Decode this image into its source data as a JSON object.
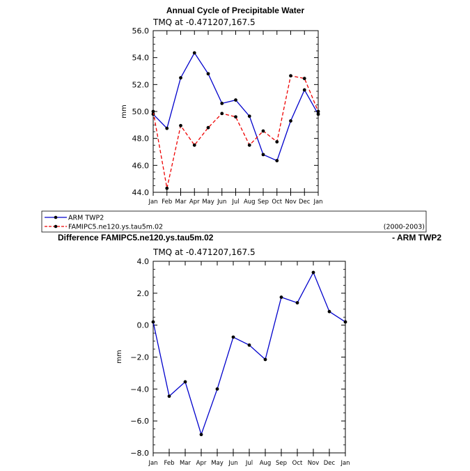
{
  "chart_data": [
    {
      "type": "line",
      "title": "Annual Cycle of Precipitable Water",
      "subtitle": "TMQ at -0.471207,167.5",
      "xlabel": "",
      "ylabel": "mm",
      "categories": [
        "Jan",
        "Feb",
        "Mar",
        "Apr",
        "May",
        "Jun",
        "Jul",
        "Aug",
        "Sep",
        "Oct",
        "Nov",
        "Dec",
        "Jan"
      ],
      "ylim": [
        44.0,
        56.0
      ],
      "yticks": [
        "44.0",
        "46.0",
        "48.0",
        "50.0",
        "52.0",
        "54.0",
        "56.0"
      ],
      "ytick_values": [
        44,
        46,
        48,
        50,
        52,
        54,
        56
      ],
      "series": [
        {
          "name": "ARM TWP2",
          "color": "#0000cc",
          "dash": "solid",
          "values": [
            49.8,
            48.75,
            52.5,
            54.35,
            52.8,
            50.6,
            50.85,
            49.65,
            46.8,
            46.35,
            49.3,
            51.6,
            49.8
          ]
        },
        {
          "name": "FAMIPC5.ne120.ys.tau5m.02",
          "color": "#ee0000",
          "dash": "dashed",
          "values": [
            50.0,
            44.3,
            48.95,
            47.5,
            48.8,
            49.85,
            49.6,
            47.5,
            48.55,
            47.75,
            52.65,
            52.45,
            50.0
          ]
        }
      ],
      "legend_note": "(2000-2003)",
      "legend": "bottom"
    },
    {
      "type": "line",
      "title": "Difference FAMIPC5.ne120.ys.tau5m.02",
      "title_right": "- ARM TWP2",
      "subtitle": "TMQ at -0.471207,167.5",
      "xlabel": "",
      "ylabel": "mm",
      "categories": [
        "Jan",
        "Feb",
        "Mar",
        "Apr",
        "May",
        "Jun",
        "Jul",
        "Aug",
        "Sep",
        "Oct",
        "Nov",
        "Dec",
        "Jan"
      ],
      "ylim": [
        -8.0,
        4.0
      ],
      "yticks": [
        "-8.0",
        "-6.0",
        "-4.0",
        "-2.0",
        "0.0",
        "2.0",
        "4.0"
      ],
      "ytick_values": [
        -8,
        -6,
        -4,
        -2,
        0,
        2,
        4
      ],
      "series": [
        {
          "color": "#0000cc",
          "dash": "solid",
          "values": [
            0.2,
            -4.45,
            -3.55,
            -6.85,
            -4.0,
            -0.75,
            -1.25,
            -2.15,
            1.75,
            1.4,
            3.3,
            0.85,
            0.2
          ]
        }
      ]
    }
  ]
}
